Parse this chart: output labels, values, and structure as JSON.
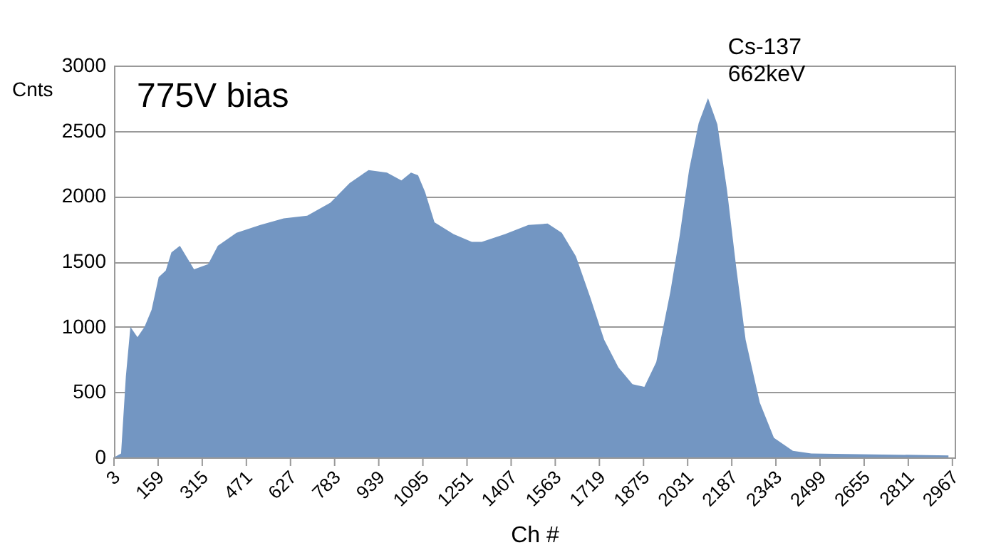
{
  "chart_data": {
    "type": "area",
    "xlabel": "Ch #",
    "ylabel": "Cnts",
    "annotations": [
      "775V bias",
      {
        "text": "Cs-137\n662keV",
        "x": 2103,
        "y": 2750
      }
    ],
    "x": [
      3,
      28,
      45,
      61,
      86,
      111,
      136,
      161,
      186,
      206,
      236,
      261,
      286,
      336,
      370,
      436,
      520,
      603,
      686,
      768,
      836,
      903,
      968,
      1019,
      1053,
      1078,
      1103,
      1136,
      1203,
      1268,
      1303,
      1386,
      1468,
      1536,
      1586,
      1636,
      1686,
      1736,
      1786,
      1836,
      1878,
      1920,
      1970,
      2003,
      2036,
      2070,
      2103,
      2136,
      2170,
      2203,
      2236,
      2286,
      2336,
      2403,
      2468,
      2636,
      2953
    ],
    "series": [
      {
        "color": "#7396c2",
        "values": [
          0,
          30,
          620,
          1000,
          920,
          1000,
          1130,
          1380,
          1430,
          1570,
          1620,
          1530,
          1440,
          1480,
          1620,
          1720,
          1780,
          1830,
          1850,
          1950,
          2100,
          2200,
          2180,
          2120,
          2180,
          2160,
          2030,
          1800,
          1710,
          1650,
          1650,
          1710,
          1780,
          1790,
          1720,
          1540,
          1230,
          900,
          690,
          560,
          540,
          730,
          1270,
          1700,
          2200,
          2560,
          2750,
          2550,
          2050,
          1450,
          900,
          420,
          150,
          50,
          30,
          25,
          15
        ]
      }
    ],
    "xlim": [
      3,
      2975
    ],
    "xticks": [
      3,
      159,
      315,
      471,
      627,
      783,
      939,
      1095,
      1251,
      1407,
      1563,
      1719,
      1875,
      2031,
      2187,
      2343,
      2499,
      2655,
      2811,
      2967
    ],
    "ylim": [
      0,
      3000
    ],
    "yticks": [
      0,
      500,
      1000,
      1500,
      2000,
      2500,
      3000
    ],
    "grid": "y"
  }
}
